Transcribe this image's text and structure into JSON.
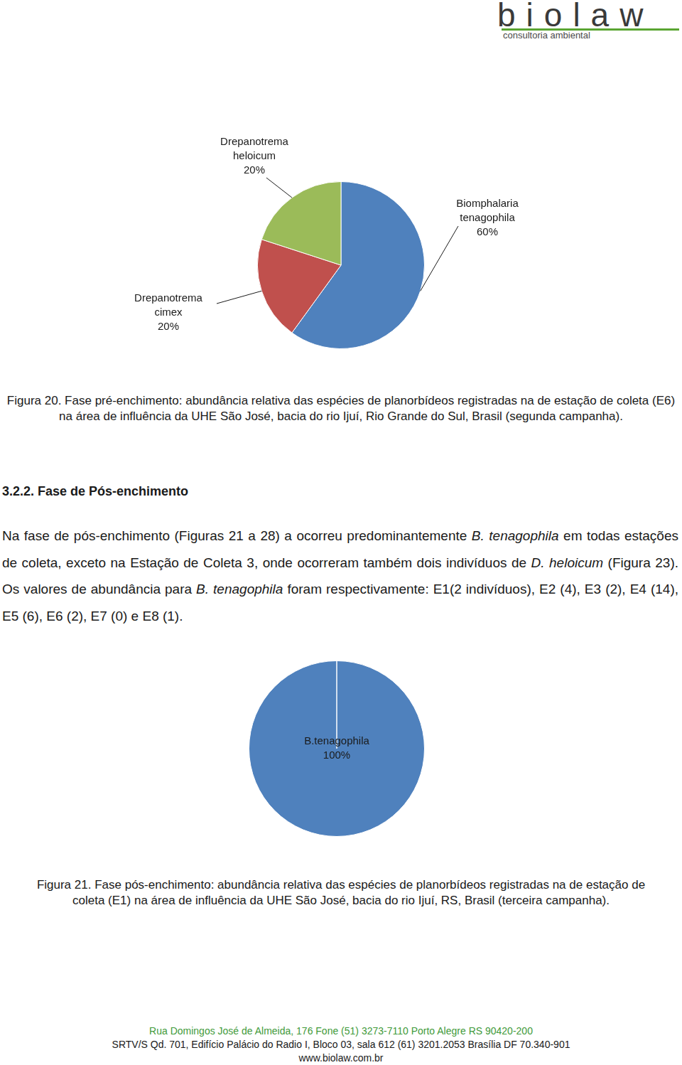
{
  "header": {
    "logo": "biolaw",
    "subtitle": "consultoria ambiental"
  },
  "chart_data": [
    {
      "type": "pie",
      "categories": [
        "Biomphalaria tenagophila",
        "Drepanotrema cimex",
        "Drepanotrema heloicum"
      ],
      "values": [
        60,
        20,
        20
      ],
      "value_labels": [
        "60%",
        "20%",
        "20%"
      ],
      "colors": [
        "#4f81bd",
        "#c0504d",
        "#9bbb59"
      ],
      "data_labels": true
    },
    {
      "type": "pie",
      "categories": [
        "B.tenagophila"
      ],
      "values": [
        100
      ],
      "value_labels": [
        "100%"
      ],
      "colors": [
        "#4f81bd"
      ],
      "data_labels": true
    }
  ],
  "captions": [
    "Figura 20. Fase pré-enchimento: abundância relativa das espécies de planorbídeos registradas na de estação de coleta (E6) na área de influência da UHE São José, bacia do rio Ijuí, Rio Grande do Sul, Brasil (segunda campanha).",
    "Figura 21. Fase pós-enchimento: abundância relativa das espécies de planorbídeos registradas na de estação de coleta (E1) na área de influência da UHE São José, bacia do rio Ijuí, RS, Brasil (terceira campanha)."
  ],
  "section": {
    "heading": "3.2.2. Fase de Pós-enchimento",
    "paragraph": [
      {
        "text": "Na fase de pós-enchimento (Figuras 21 a 28) a ocorreu predominantemente ",
        "italic": false
      },
      {
        "text": "B. tenagophila",
        "italic": true
      },
      {
        "text": " em todas estações de coleta, exceto na Estação de Coleta 3, onde ocorreram também dois indivíduos de ",
        "italic": false
      },
      {
        "text": "D. heloicum",
        "italic": true
      },
      {
        "text": " (Figura 23). Os valores de abundância para ",
        "italic": false
      },
      {
        "text": "B. tenagophila",
        "italic": true
      },
      {
        "text": " foram respectivamente: E1(2 indivíduos), E2 (4), E3 (2), E4 (14), E5 (6), E6 (2), E7 (0) e E8 (1).",
        "italic": false
      }
    ]
  },
  "footer": [
    "Rua Domingos José de Almeida, 176 Fone (51) 3273-7110 Porto Alegre RS 90420-200",
    "SRTV/S Qd. 701, Edifício Palácio do Radio I, Bloco 03, sala 612 (61) 3201.2053 Brasília DF 70.340-901",
    "www.biolaw.com.br"
  ]
}
